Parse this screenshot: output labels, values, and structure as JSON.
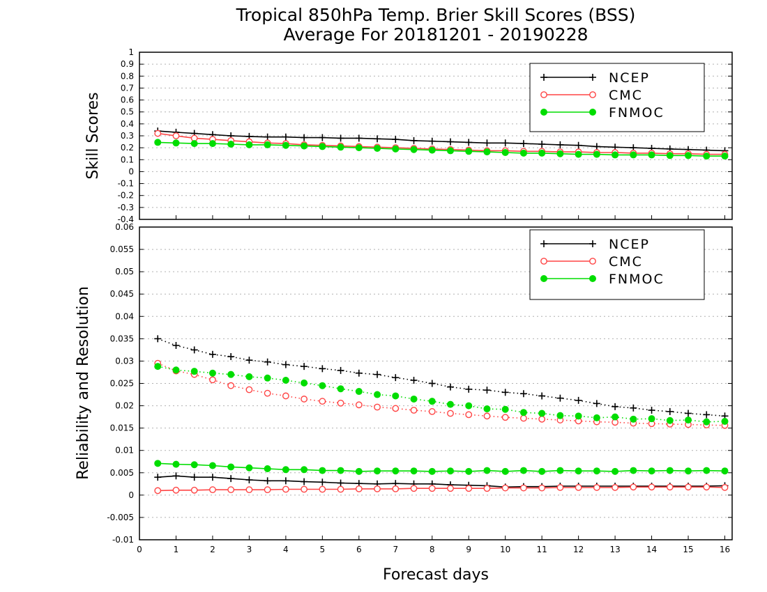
{
  "chart_data": [
    {
      "type": "line",
      "panel": "top",
      "title": "Tropical 850hPa Temp. Brier Skill Scores (BSS)",
      "subtitle": "Average For 20181201 - 20190228",
      "xlabel": "",
      "ylabel": "Skill Scores",
      "xlim": [
        0,
        16.2
      ],
      "ylim": [
        -0.4,
        1
      ],
      "yticks": [
        "1",
        "0.9",
        "0.8",
        "0.7",
        "0.6",
        "0.5",
        "0.4",
        "0.3",
        "0.2",
        "0.1",
        "0",
        "-0.1",
        "-0.2",
        "-0.3",
        "-0.4"
      ],
      "grid": true,
      "legend_position": "top-right",
      "x": [
        0.5,
        1,
        1.5,
        2,
        2.5,
        3,
        3.5,
        4,
        4.5,
        5,
        5.5,
        6,
        6.5,
        7,
        7.5,
        8,
        8.5,
        9,
        9.5,
        10,
        10.5,
        11,
        11.5,
        12,
        12.5,
        13,
        13.5,
        14,
        14.5,
        15,
        15.5,
        16
      ],
      "series": [
        {
          "name": "NCEP",
          "color": "#000000",
          "marker": "plus",
          "line": "solid",
          "values": [
            0.34,
            0.33,
            0.32,
            0.31,
            0.3,
            0.295,
            0.29,
            0.29,
            0.285,
            0.285,
            0.28,
            0.28,
            0.275,
            0.27,
            0.26,
            0.255,
            0.25,
            0.245,
            0.24,
            0.24,
            0.235,
            0.23,
            0.225,
            0.22,
            0.21,
            0.205,
            0.2,
            0.195,
            0.19,
            0.185,
            0.18,
            0.175
          ]
        },
        {
          "name": "CMC",
          "color": "#ff4444",
          "marker": "open-circle",
          "line": "solid",
          "values": [
            0.32,
            0.3,
            0.28,
            0.27,
            0.26,
            0.25,
            0.24,
            0.235,
            0.225,
            0.22,
            0.215,
            0.21,
            0.205,
            0.2,
            0.195,
            0.19,
            0.185,
            0.18,
            0.175,
            0.175,
            0.17,
            0.17,
            0.165,
            0.165,
            0.16,
            0.16,
            0.155,
            0.155,
            0.15,
            0.15,
            0.145,
            0.145
          ]
        },
        {
          "name": "FNMOC",
          "color": "#00dd00",
          "marker": "filled-circle",
          "line": "solid",
          "values": [
            0.245,
            0.24,
            0.235,
            0.235,
            0.23,
            0.225,
            0.225,
            0.22,
            0.215,
            0.21,
            0.205,
            0.2,
            0.195,
            0.19,
            0.185,
            0.18,
            0.175,
            0.17,
            0.165,
            0.16,
            0.155,
            0.155,
            0.15,
            0.145,
            0.145,
            0.14,
            0.14,
            0.14,
            0.135,
            0.135,
            0.13,
            0.13
          ]
        }
      ]
    },
    {
      "type": "line",
      "panel": "bottom",
      "title": "",
      "xlabel": "Forecast days",
      "ylabel": "Reliability and Resolution",
      "xlim": [
        0,
        16.2
      ],
      "ylim": [
        -0.01,
        0.06
      ],
      "xticks": [
        "0",
        "1",
        "2",
        "3",
        "4",
        "5",
        "6",
        "7",
        "8",
        "9",
        "10",
        "11",
        "12",
        "13",
        "14",
        "15",
        "16"
      ],
      "yticks": [
        "0.06",
        "0.055",
        "0.05",
        "0.045",
        "0.04",
        "0.035",
        "0.03",
        "0.025",
        "0.02",
        "0.015",
        "0.01",
        "0.005",
        "0",
        "-0.005",
        "-0.01"
      ],
      "grid": true,
      "legend_position": "top-right",
      "x": [
        0.5,
        1,
        1.5,
        2,
        2.5,
        3,
        3.5,
        4,
        4.5,
        5,
        5.5,
        6,
        6.5,
        7,
        7.5,
        8,
        8.5,
        9,
        9.5,
        10,
        10.5,
        11,
        11.5,
        12,
        12.5,
        13,
        13.5,
        14,
        14.5,
        15,
        15.5,
        16
      ],
      "series": [
        {
          "name": "NCEP",
          "color": "#000000",
          "marker": "plus",
          "line": "dotted",
          "role": "resolution",
          "values": [
            0.035,
            0.0335,
            0.0325,
            0.0315,
            0.031,
            0.0302,
            0.0298,
            0.0292,
            0.0288,
            0.0283,
            0.0279,
            0.0273,
            0.027,
            0.0263,
            0.0257,
            0.025,
            0.0242,
            0.0237,
            0.0235,
            0.023,
            0.0227,
            0.0222,
            0.0217,
            0.0212,
            0.0205,
            0.0198,
            0.0195,
            0.019,
            0.0187,
            0.0183,
            0.018,
            0.0177
          ]
        },
        {
          "name": "CMC",
          "color": "#ff4444",
          "marker": "open-circle",
          "line": "dotted",
          "role": "resolution",
          "values": [
            0.0295,
            0.0278,
            0.027,
            0.0258,
            0.0245,
            0.0236,
            0.0228,
            0.0222,
            0.0215,
            0.021,
            0.0206,
            0.0202,
            0.0197,
            0.0194,
            0.019,
            0.0187,
            0.0183,
            0.018,
            0.0177,
            0.0174,
            0.0172,
            0.017,
            0.0168,
            0.0166,
            0.0164,
            0.0163,
            0.0161,
            0.016,
            0.0159,
            0.0158,
            0.0157,
            0.0156
          ]
        },
        {
          "name": "FNMOC",
          "color": "#00dd00",
          "marker": "filled-circle",
          "line": "dotted",
          "role": "resolution",
          "values": [
            0.0288,
            0.028,
            0.0277,
            0.0273,
            0.027,
            0.0265,
            0.0262,
            0.0257,
            0.0251,
            0.0245,
            0.0238,
            0.0232,
            0.0225,
            0.0222,
            0.0215,
            0.021,
            0.0203,
            0.02,
            0.0193,
            0.0192,
            0.0185,
            0.0183,
            0.0178,
            0.0177,
            0.0173,
            0.0175,
            0.017,
            0.0171,
            0.0167,
            0.0168,
            0.0164,
            0.0165
          ]
        },
        {
          "name": "NCEP",
          "color": "#000000",
          "marker": "plus",
          "line": "solid",
          "role": "reliability",
          "values": [
            0.004,
            0.0043,
            0.004,
            0.004,
            0.0037,
            0.0034,
            0.0032,
            0.0032,
            0.003,
            0.0029,
            0.0027,
            0.0026,
            0.0025,
            0.0026,
            0.0025,
            0.0025,
            0.0023,
            0.0022,
            0.0021,
            0.0018,
            0.0019,
            0.0019,
            0.002,
            0.002,
            0.002,
            0.002,
            0.002,
            0.002,
            0.002,
            0.002,
            0.002,
            0.0021
          ]
        },
        {
          "name": "CMC",
          "color": "#ff4444",
          "marker": "open-circle",
          "line": "solid",
          "role": "reliability",
          "values": [
            0.001,
            0.0011,
            0.0011,
            0.0012,
            0.0012,
            0.0012,
            0.0012,
            0.0013,
            0.0013,
            0.0013,
            0.0013,
            0.0014,
            0.0014,
            0.0014,
            0.0015,
            0.0015,
            0.0015,
            0.0015,
            0.0015,
            0.0016,
            0.0016,
            0.0016,
            0.0017,
            0.0017,
            0.0017,
            0.0017,
            0.0018,
            0.0018,
            0.0018,
            0.0018,
            0.0018,
            0.0017
          ]
        },
        {
          "name": "FNMOC",
          "color": "#00dd00",
          "marker": "filled-circle",
          "line": "solid",
          "role": "reliability",
          "values": [
            0.0071,
            0.0069,
            0.0068,
            0.0066,
            0.0063,
            0.0061,
            0.0059,
            0.0057,
            0.0057,
            0.0055,
            0.0055,
            0.0053,
            0.0054,
            0.0054,
            0.0054,
            0.0053,
            0.0054,
            0.0053,
            0.0055,
            0.0053,
            0.0055,
            0.0053,
            0.0055,
            0.0054,
            0.0054,
            0.0053,
            0.0055,
            0.0054,
            0.0055,
            0.0054,
            0.0055,
            0.0054
          ]
        }
      ]
    }
  ],
  "legend": {
    "labels": [
      "NCEP",
      "CMC",
      "FNMOC"
    ],
    "colors": [
      "#000000",
      "#ff4444",
      "#00dd00"
    ],
    "markers": [
      "plus",
      "open-circle",
      "filled-circle"
    ]
  }
}
